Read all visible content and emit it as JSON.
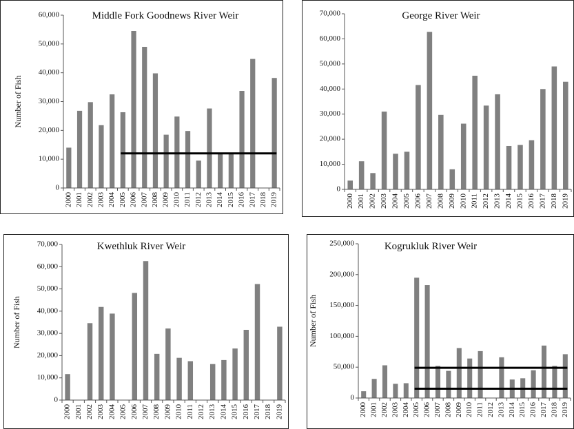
{
  "chart_data": [
    {
      "type": "bar",
      "title": "Middle Fork Goodnews River Weir",
      "y_label": "Number of Fish",
      "color": "#808080",
      "categories": [
        "2000",
        "2001",
        "2002",
        "2003",
        "2004",
        "2005",
        "2006",
        "2007",
        "2008",
        "2009",
        "2010",
        "2011",
        "2012",
        "2013",
        "2014",
        "2015",
        "2016",
        "2017",
        "2018",
        "2019"
      ],
      "values": [
        14000,
        26800,
        29800,
        21800,
        32500,
        26300,
        54500,
        49000,
        39800,
        18500,
        24800,
        19800,
        9500,
        27600,
        12000,
        12000,
        33700,
        44800,
        null,
        38200
      ],
      "ylim": [
        0,
        60000
      ],
      "yticks": [
        0,
        {
          "value": 10000,
          "label": "10,000"
        },
        {
          "value": 20000,
          "label": "20,000"
        },
        {
          "value": 30000,
          "label": "30,000"
        },
        {
          "value": 40000,
          "label": "40,000"
        },
        {
          "value": 50000,
          "label": "50,000"
        },
        {
          "value": 60000,
          "label": "60,000"
        }
      ],
      "hlines": [
        {
          "y": 12000,
          "from": "2005",
          "to": "2019"
        }
      ]
    },
    {
      "type": "bar",
      "title": "George River Weir",
      "color": "#808080",
      "categories": [
        "2000",
        "2001",
        "2002",
        "2003",
        "2004",
        "2005",
        "2006",
        "2007",
        "2008",
        "2009",
        "2010",
        "2011",
        "2012",
        "2013",
        "2014",
        "2015",
        "2016",
        "2017",
        "2018",
        "2019"
      ],
      "values": [
        3500,
        11200,
        6500,
        31000,
        14200,
        15000,
        41600,
        62800,
        29700,
        8000,
        26200,
        45300,
        33400,
        37900,
        17300,
        17700,
        19600,
        40000,
        49000,
        42900
      ],
      "ylim": [
        0,
        70000
      ],
      "yticks": [
        0,
        {
          "value": 10000,
          "label": "10,000"
        },
        {
          "value": 20000,
          "label": "20,000"
        },
        {
          "value": 30000,
          "label": "30,000"
        },
        {
          "value": 40000,
          "label": "40,000"
        },
        {
          "value": 50000,
          "label": "50,000"
        },
        {
          "value": 60000,
          "label": "60,000"
        },
        {
          "value": 70000,
          "label": "70,000"
        }
      ]
    },
    {
      "type": "bar",
      "title": "Kwethluk River Weir",
      "y_label": "Number of Fish",
      "color": "#808080",
      "categories": [
        "2000",
        "2001",
        "2002",
        "2003",
        "2004",
        "2005",
        "2006",
        "2007",
        "2008",
        "2009",
        "2010",
        "2011",
        "2012",
        "2013",
        "2014",
        "2015",
        "2016",
        "2017",
        "2018",
        "2019"
      ],
      "values": [
        11700,
        null,
        34600,
        41900,
        38900,
        null,
        48200,
        62500,
        20800,
        32200,
        19000,
        17500,
        null,
        16200,
        18000,
        23200,
        31600,
        52200,
        null,
        33000
      ],
      "ylim": [
        0,
        70000
      ],
      "yticks": [
        0,
        {
          "value": 10000,
          "label": "10,000"
        },
        {
          "value": 20000,
          "label": "20,000"
        },
        {
          "value": 30000,
          "label": "30,000"
        },
        {
          "value": 40000,
          "label": "40,000"
        },
        {
          "value": 50000,
          "label": "50,000"
        },
        {
          "value": 60000,
          "label": "60,000"
        },
        {
          "value": 70000,
          "label": "70,000"
        }
      ]
    },
    {
      "type": "bar",
      "title": "Kogrukluk River Weir",
      "y_label": "Number of Fish",
      "color": "#808080",
      "categories": [
        "2000",
        "2001",
        "2002",
        "2003",
        "2004",
        "2005",
        "2006",
        "2007",
        "2008",
        "2009",
        "2010",
        "2011",
        "2012",
        "2013",
        "2014",
        "2015",
        "2016",
        "2017",
        "2018",
        "2019"
      ],
      "values": [
        11000,
        31000,
        53000,
        23000,
        24000,
        195000,
        183000,
        52000,
        44000,
        81000,
        64000,
        76000,
        null,
        66000,
        30000,
        32000,
        45000,
        85000,
        52000,
        71000
      ],
      "ylim": [
        0,
        250000
      ],
      "yticks": [
        0,
        {
          "value": 50000,
          "label": "50,000"
        },
        {
          "value": 100000,
          "label": "100,000"
        },
        {
          "value": 150000,
          "label": "150,000"
        },
        {
          "value": 200000,
          "label": "200,000"
        },
        {
          "value": 250000,
          "label": "250,000"
        }
      ],
      "hlines": [
        {
          "y": 49000,
          "from": "2005",
          "to": "2019"
        },
        {
          "y": 15000,
          "from": "2005",
          "to": "2019"
        }
      ]
    }
  ]
}
